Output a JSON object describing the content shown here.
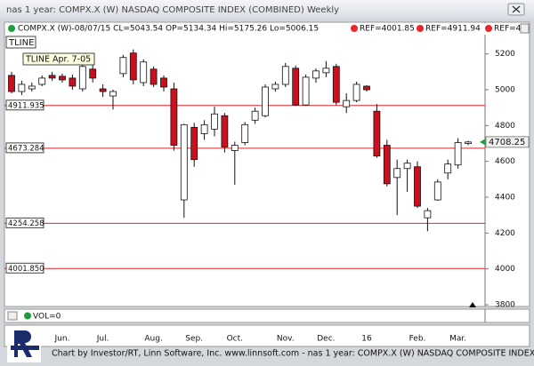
{
  "window": {
    "title": "nas 1 year: COMPX.X (W) NASDAQ COMPOSITE INDEX (COMBINED) Weekly"
  },
  "chart_data": {
    "type": "candlestick",
    "legend_text": "COMPX.X (W)-08/07/15 CL=5043.54 OP=5134.34 Hi=5175.26 Lo=5006.15",
    "ref_legend": [
      "REF=4001.85",
      "REF=4911.94",
      "REF=4"
    ],
    "trendline_label": "TLINE",
    "tooltip": "TLINE Apr. 7-05",
    "categories": [
      null,
      null,
      null,
      null,
      null,
      "Jun.",
      null,
      null,
      null,
      "Jul.",
      null,
      null,
      null,
      null,
      "Aug.",
      null,
      null,
      null,
      "Sep.",
      null,
      null,
      null,
      "Oct.",
      null,
      null,
      null,
      null,
      "Nov.",
      null,
      null,
      null,
      "Dec.",
      null,
      null,
      null,
      "16",
      null,
      null,
      null,
      null,
      "Feb.",
      null,
      null,
      null,
      "Mar.",
      null
    ],
    "open": [
      5080,
      4990,
      5005,
      5030,
      5080,
      5075,
      5065,
      5005,
      5115,
      5005,
      4965,
      5090,
      5205,
      5040,
      5115,
      5065,
      5005,
      4385,
      4790,
      4755,
      4780,
      4855,
      4660,
      4705,
      4830,
      4855,
      5005,
      5030,
      5120,
      4915,
      5065,
      5095,
      5130,
      4905,
      4940,
      5020,
      4880,
      4690,
      4510,
      4560,
      4570,
      4285,
      4385,
      4535,
      4580,
      4700
    ],
    "high": [
      5100,
      5050,
      5040,
      5080,
      5100,
      5090,
      5085,
      5150,
      5140,
      5030,
      5000,
      5195,
      5225,
      5170,
      5130,
      5080,
      5040,
      4810,
      4815,
      4830,
      4905,
      4870,
      4710,
      4820,
      4900,
      5030,
      5045,
      5150,
      5135,
      5085,
      5120,
      5160,
      5145,
      4980,
      5045,
      5025,
      4920,
      4720,
      4610,
      4610,
      4600,
      4340,
      4500,
      4610,
      4730,
      4715
    ],
    "low": [
      4980,
      4970,
      4990,
      5020,
      5050,
      5040,
      5000,
      4990,
      5040,
      4960,
      4890,
      5070,
      5030,
      5020,
      5015,
      4990,
      4660,
      4285,
      4570,
      4720,
      4740,
      4650,
      4470,
      4690,
      4810,
      4845,
      4990,
      5015,
      4910,
      4910,
      5040,
      5070,
      4915,
      4870,
      4930,
      4990,
      4620,
      4460,
      4300,
      4430,
      4340,
      4210,
      4380,
      4500,
      4560,
      4690
    ],
    "close": [
      4990,
      5030,
      5020,
      5065,
      5065,
      5055,
      5020,
      5130,
      5065,
      4990,
      4990,
      5180,
      5055,
      5155,
      5030,
      5015,
      4690,
      4805,
      4610,
      4805,
      4865,
      4680,
      4690,
      4805,
      4880,
      5015,
      5030,
      5130,
      4915,
      5070,
      5105,
      5120,
      4930,
      4940,
      5030,
      5000,
      4630,
      4475,
      4560,
      4590,
      4350,
      4325,
      4485,
      4585,
      4705,
      4708.25
    ],
    "up_color": "#ffffff",
    "down_color": "#c8101e",
    "ref_color": "#e8262c",
    "ylim": [
      3790,
      5377
    ],
    "yticks": [
      3800,
      4000,
      4200,
      4400,
      4600,
      4800,
      5000,
      5200
    ],
    "reference_lines": [
      4911.935,
      4673.284,
      4254.258,
      {
        "value": 4001.85,
        "label": "4001.850"
      }
    ],
    "last_price": 4708.25,
    "volume_label": "VOL=0"
  },
  "footer": "Chart by Investor/RT, Linn Software, Inc. www.linnsoft.com - nas 1 year: COMPX.X (W) NASDAQ COMPOSITE INDEX"
}
